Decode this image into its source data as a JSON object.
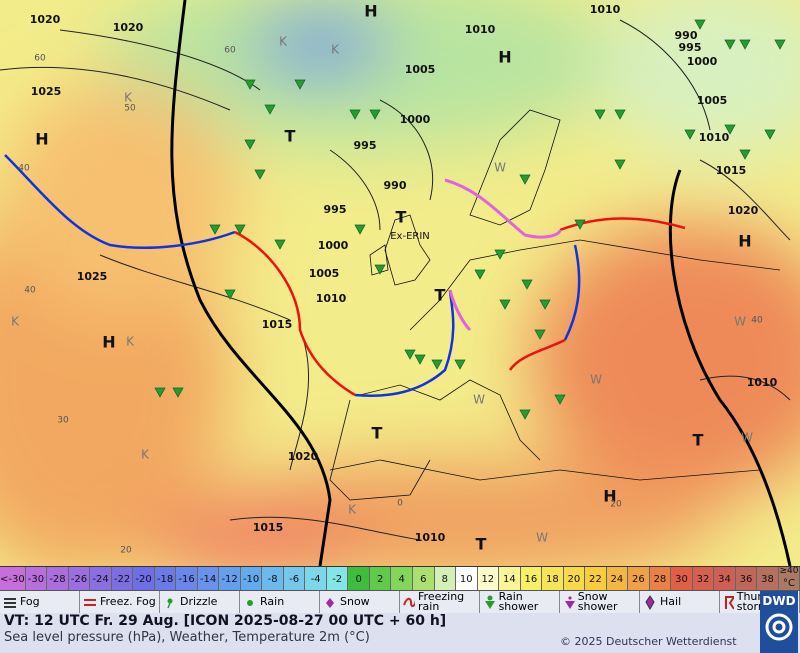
{
  "map": {
    "pressure_labels": [
      "1020",
      "1020",
      "1025",
      "1010",
      "1010",
      "1005",
      "1000",
      "995",
      "990",
      "995",
      "1000",
      "1005",
      "1010",
      "1015",
      "1025",
      "1020",
      "1015",
      "1010",
      "990",
      "995",
      "1000",
      "1005",
      "1010",
      "1015",
      "1020",
      "1010"
    ],
    "centers": [
      "H",
      "H",
      "H",
      "H",
      "H",
      "H",
      "T",
      "T",
      "T",
      "T",
      "T",
      "T"
    ],
    "storm_name": "Ex-ERIN",
    "temperature_labels": [
      "60",
      "50",
      "40",
      "40",
      "30",
      "20",
      "60",
      "0",
      "20",
      "40"
    ],
    "airmass_labels": [
      "K",
      "K",
      "K",
      "K",
      "K",
      "K",
      "K",
      "W",
      "W",
      "W",
      "W",
      "W",
      "W"
    ]
  },
  "scale": {
    "labels": [
      "<-30",
      "-30",
      "-28",
      "-26",
      "-24",
      "-22",
      "-20",
      "-18",
      "-16",
      "-14",
      "-12",
      "-10",
      "-8",
      "-6",
      "-4",
      "-2",
      "0",
      "2",
      "4",
      "6",
      "8",
      "10",
      "12",
      "14",
      "16",
      "18",
      "20",
      "22",
      "24",
      "26",
      "28",
      "30",
      "32",
      "34",
      "36",
      "38",
      "≥40"
    ],
    "unit": "°C"
  },
  "legend": [
    "Fog",
    "Freez. Fog",
    "Drizzle",
    "Rain",
    "Snow",
    "Freezing rain",
    "Rain shower",
    "Snow shower",
    "Hail",
    "Thunder storm"
  ],
  "footer": {
    "valid_time": "VT: 12 UTC Fr.  29 Aug. [ICON 2025-08-27  00 UTC + 60 h]",
    "description": "Sea level pressure (hPa), Weather, Temperature 2m (°C)",
    "copyright": "© 2025 Deutscher Wetterdienst",
    "logo": "DWD"
  }
}
